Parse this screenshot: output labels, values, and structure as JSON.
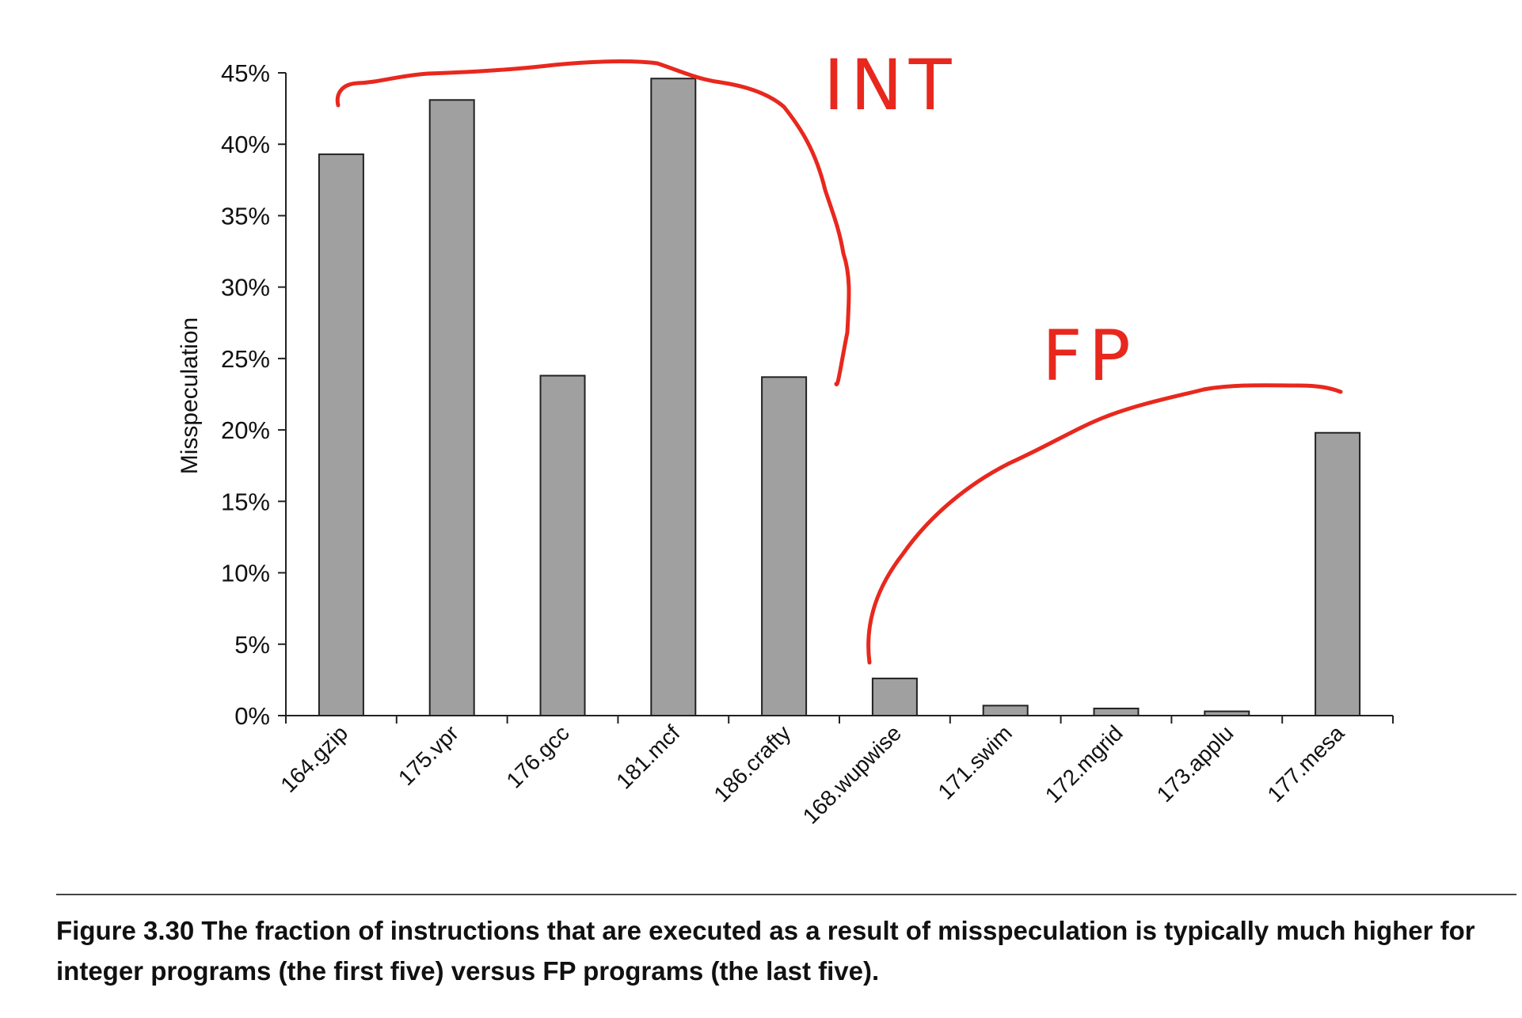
{
  "chart_data": {
    "type": "bar",
    "ylabel": "Misspeculation",
    "xlabel": "",
    "ylim": [
      0,
      45
    ],
    "yticks": [
      "0%",
      "5%",
      "10%",
      "15%",
      "20%",
      "25%",
      "30%",
      "35%",
      "40%",
      "45%"
    ],
    "categories": [
      "164.gzip",
      "175.vpr",
      "176.gcc",
      "181.mcf",
      "186.crafty",
      "168.wupwise",
      "171.swim",
      "172.mgrid",
      "173.applu",
      "177.mesa"
    ],
    "values": [
      39.3,
      43.1,
      23.8,
      44.6,
      23.7,
      2.6,
      0.7,
      0.5,
      0.3,
      19.8
    ],
    "bar_color": "#a0a0a0",
    "grid": false,
    "annotations": [
      {
        "text": "INT",
        "color": "#e8281e"
      },
      {
        "text": "FP",
        "color": "#e8281e"
      }
    ]
  },
  "caption": {
    "label": "Figure 3.30",
    "text": "The fraction of instructions that are executed as a result of misspeculation is typically much higher for integer programs (the first five) versus FP programs (the last five)."
  }
}
